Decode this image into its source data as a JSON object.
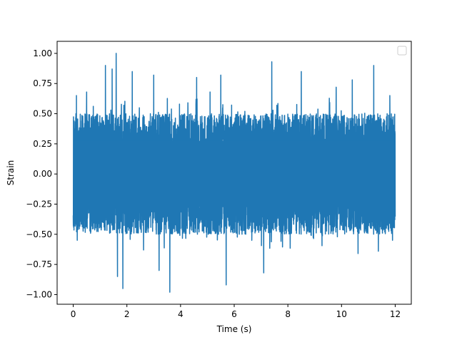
{
  "chart_data": {
    "type": "line",
    "title": "",
    "xlabel": "Time (s)",
    "ylabel": "Strain",
    "xlim": [
      -0.6,
      12.6
    ],
    "ylim": [
      -1.08,
      1.1
    ],
    "x_ticks": [
      0,
      2,
      4,
      6,
      8,
      10,
      12
    ],
    "x_tick_labels": [
      "0",
      "2",
      "4",
      "6",
      "8",
      "10",
      "12"
    ],
    "y_ticks": [
      -1.0,
      -0.75,
      -0.5,
      -0.25,
      0.0,
      0.25,
      0.5,
      0.75,
      1.0
    ],
    "y_tick_labels": [
      "−1.00",
      "−0.75",
      "−0.50",
      "−0.25",
      "0.00",
      "0.25",
      "0.50",
      "0.75",
      "1.00"
    ],
    "grid": false,
    "legend": {
      "placement": "upper right",
      "entries": []
    },
    "series": [
      {
        "color": "#1f77b4",
        "x_range": [
          0,
          12
        ],
        "envelope": {
          "typical_min": -0.5,
          "typical_max": 0.5,
          "peak_max": 1.0,
          "peak_min": -0.98
        },
        "notable_peaks": [
          {
            "x": 0.1,
            "y": 0.5
          },
          {
            "x": 0.15,
            "y": -0.55
          },
          {
            "x": 0.12,
            "y": 0.65
          },
          {
            "x": 0.5,
            "y": 0.68
          },
          {
            "x": 1.2,
            "y": 0.9
          },
          {
            "x": 1.45,
            "y": 0.87
          },
          {
            "x": 1.6,
            "y": 1.0
          },
          {
            "x": 1.85,
            "y": -0.95
          },
          {
            "x": 1.65,
            "y": -0.85
          },
          {
            "x": 2.2,
            "y": 0.85
          },
          {
            "x": 3.0,
            "y": 0.82
          },
          {
            "x": 3.6,
            "y": -0.98
          },
          {
            "x": 3.2,
            "y": -0.8
          },
          {
            "x": 4.6,
            "y": 0.8
          },
          {
            "x": 5.1,
            "y": 0.68
          },
          {
            "x": 5.5,
            "y": 0.82
          },
          {
            "x": 5.7,
            "y": -0.92
          },
          {
            "x": 7.4,
            "y": 0.93
          },
          {
            "x": 7.1,
            "y": -0.82
          },
          {
            "x": 8.5,
            "y": 0.85
          },
          {
            "x": 9.8,
            "y": 0.72
          },
          {
            "x": 10.4,
            "y": 0.78
          },
          {
            "x": 11.2,
            "y": 0.9
          },
          {
            "x": 11.8,
            "y": 0.65
          },
          {
            "x": 11.9,
            "y": -0.55
          }
        ]
      }
    ]
  }
}
